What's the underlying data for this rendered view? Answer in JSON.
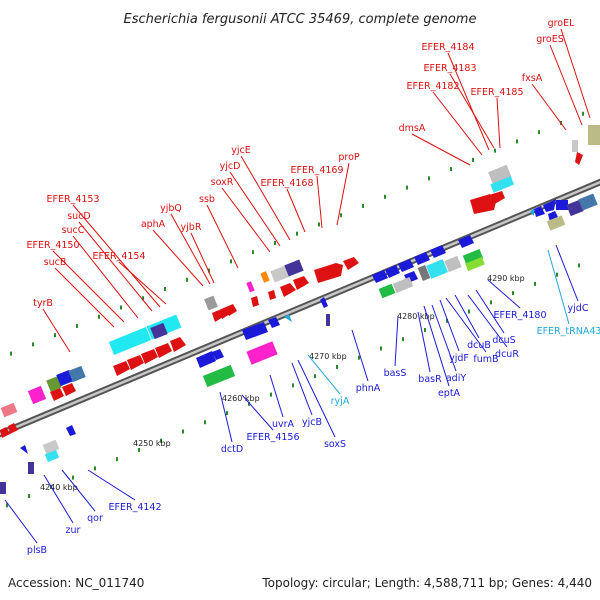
{
  "title": "Escherichia fergusonii ATCC 35469, complete genome",
  "footer": {
    "accession": "Accession: NC_011740",
    "summary": "Topology: circular; Length: 4,588,711 bp; Genes: 4,440"
  },
  "colors": {
    "forward": "#dd1111",
    "reverse": "#1a1ad8",
    "trna": "#22aadd",
    "backbone": "#777777",
    "tick": "#2a8a2a"
  },
  "kbp_labels": [
    "4240 kbp",
    "4250 kbp",
    "4260 kbp",
    "4270 kbp",
    "4280 kbp",
    "4290 kbp"
  ],
  "forward_genes": [
    "groEL",
    "groES",
    "EFER_4184",
    "EFER_4183",
    "EFER_4182",
    "EFER_4185",
    "fxsA",
    "dmsA",
    "proP",
    "EFER_4169",
    "yjcE",
    "yjcD",
    "EFER_4168",
    "soxR",
    "ssb",
    "yjbQ",
    "aphA",
    "yjbR",
    "EFER_4153",
    "sucD",
    "sucC",
    "EFER_4150",
    "EFER_4154",
    "sucB",
    "tyrB"
  ],
  "reverse_genes": [
    "EFER_tRNA43",
    "yjdC",
    "EFER_4180",
    "dcuS",
    "dcuR",
    "dcuB",
    "fumB",
    "adiY",
    "yjdF",
    "basR",
    "eptA",
    "basS",
    "phnA",
    "ryjA",
    "soxS",
    "yjcB",
    "uvrA",
    "EFER_4156",
    "dctD",
    "EFER_4142",
    "qor",
    "zur",
    "plsB"
  ]
}
